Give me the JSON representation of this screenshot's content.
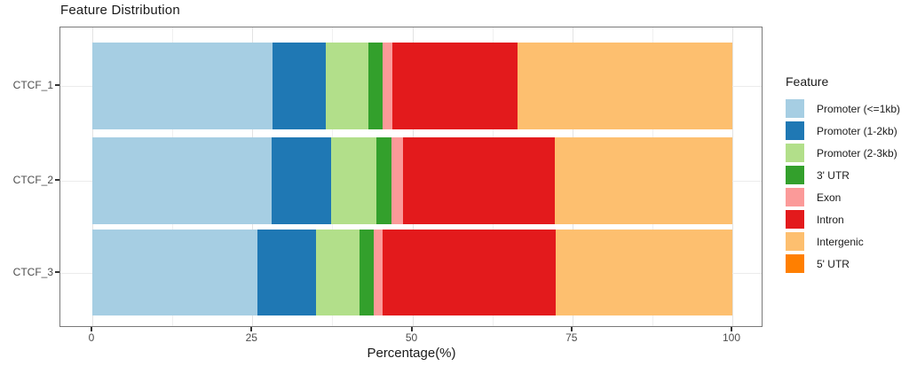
{
  "title": "Feature Distribution",
  "x_axis": {
    "label": "Percentage(%)",
    "ticks": [
      "0",
      "25",
      "50",
      "75",
      "100"
    ]
  },
  "legend": {
    "title": "Feature",
    "items": [
      {
        "label": "Promoter (<=1kb)",
        "color": "#a6cee3"
      },
      {
        "label": "Promoter (1-2kb)",
        "color": "#1f78b4"
      },
      {
        "label": "Promoter (2-3kb)",
        "color": "#b2df8a"
      },
      {
        "label": "3' UTR",
        "color": "#33a02c"
      },
      {
        "label": "Exon",
        "color": "#fb9a99"
      },
      {
        "label": "Intron",
        "color": "#e31a1c"
      },
      {
        "label": "Intergenic",
        "color": "#fdbf6f"
      },
      {
        "label": "5' UTR",
        "color": "#ff7f00"
      }
    ]
  },
  "chart_data": {
    "type": "bar",
    "orientation": "horizontal",
    "stacked": true,
    "title": "Feature Distribution",
    "xlabel": "Percentage(%)",
    "ylabel": "",
    "xlim": [
      0,
      100
    ],
    "x_ticks": [
      0,
      25,
      50,
      75,
      100
    ],
    "x_minor_gridlines": [
      12.5,
      37.5,
      62.5,
      87.5
    ],
    "grid": true,
    "legend_position": "right",
    "categories": [
      "CTCF_1",
      "CTCF_2",
      "CTCF_3"
    ],
    "series": [
      {
        "name": "Promoter (<=1kb)",
        "color": "#a6cee3",
        "values": [
          28.2,
          28.0,
          25.8
        ]
      },
      {
        "name": "Promoter (1-2kb)",
        "color": "#1f78b4",
        "values": [
          8.3,
          9.3,
          9.1
        ]
      },
      {
        "name": "Promoter (2-3kb)",
        "color": "#b2df8a",
        "values": [
          6.6,
          7.1,
          6.9
        ]
      },
      {
        "name": "3' UTR",
        "color": "#33a02c",
        "values": [
          2.3,
          2.3,
          2.1
        ]
      },
      {
        "name": "Exon",
        "color": "#fb9a99",
        "values": [
          1.5,
          1.9,
          1.5
        ]
      },
      {
        "name": "Intron",
        "color": "#e31a1c",
        "values": [
          19.6,
          23.7,
          27.0
        ]
      },
      {
        "name": "Intergenic",
        "color": "#fdbf6f",
        "values": [
          33.5,
          27.7,
          27.6
        ]
      },
      {
        "name": "5' UTR",
        "color": "#ff7f00",
        "values": [
          0,
          0,
          0
        ]
      }
    ]
  }
}
